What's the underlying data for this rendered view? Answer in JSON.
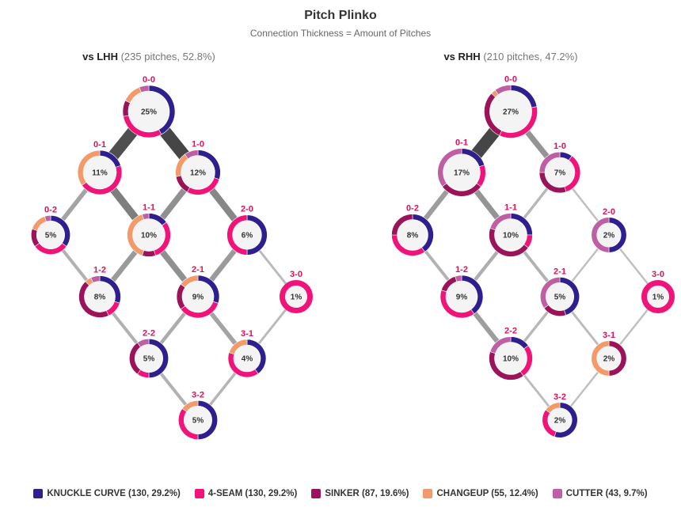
{
  "chart_data": {
    "type": "pitch-plinko",
    "title": "Pitch Plinko",
    "subtitle": "Connection Thickness = Amount of Pitches",
    "pitch_types": [
      {
        "key": "knuckle_curve",
        "label": "KNUCKLE CURVE (130, 29.2%)",
        "color": "#2e1f8f"
      },
      {
        "key": "four_seam",
        "label": "4-SEAM (130, 29.2%)",
        "color": "#f2137a"
      },
      {
        "key": "sinker",
        "label": "SINKER (87, 19.6%)",
        "color": "#9b1459"
      },
      {
        "key": "changeup",
        "label": "CHANGEUP (55, 12.4%)",
        "color": "#f29a6a"
      },
      {
        "key": "cutter",
        "label": "CUTTER (43, 9.7%)",
        "color": "#bf5fa3"
      }
    ],
    "panels": [
      {
        "name": "vs LHH",
        "detail": "(235 pitches, 52.8%)",
        "nodes": [
          {
            "count": "0-0",
            "pct": 25,
            "label": "25%",
            "mix": {
              "knuckle_curve": 0.42,
              "four_seam": 0.3,
              "changeup": 0.12,
              "sinker": 0.1,
              "cutter": 0.06
            }
          },
          {
            "count": "0-1",
            "pct": 11,
            "label": "11%",
            "mix": {
              "four_seam": 0.45,
              "changeup": 0.35,
              "knuckle_curve": 0.2
            }
          },
          {
            "count": "1-0",
            "pct": 12,
            "label": "12%",
            "mix": {
              "four_seam": 0.28,
              "knuckle_curve": 0.3,
              "changeup": 0.18,
              "sinker": 0.14,
              "cutter": 0.1
            }
          },
          {
            "count": "0-2",
            "pct": 5,
            "label": "5%",
            "mix": {
              "knuckle_curve": 0.35,
              "four_seam": 0.3,
              "sinker": 0.15,
              "changeup": 0.15,
              "cutter": 0.05
            }
          },
          {
            "count": "1-1",
            "pct": 10,
            "label": "10%",
            "mix": {
              "four_seam": 0.3,
              "changeup": 0.4,
              "knuckle_curve": 0.15,
              "sinker": 0.1,
              "cutter": 0.05
            }
          },
          {
            "count": "2-0",
            "pct": 6,
            "label": "6%",
            "mix": {
              "four_seam": 0.5,
              "knuckle_curve": 0.5
            }
          },
          {
            "count": "1-2",
            "pct": 8,
            "label": "8%",
            "mix": {
              "sinker": 0.45,
              "knuckle_curve": 0.3,
              "four_seam": 0.13,
              "changeup": 0.05,
              "cutter": 0.07
            }
          },
          {
            "count": "2-1",
            "pct": 9,
            "label": "9%",
            "mix": {
              "four_seam": 0.35,
              "knuckle_curve": 0.3,
              "changeup": 0.15,
              "sinker": 0.2
            }
          },
          {
            "count": "3-0",
            "pct": 1,
            "label": "1%",
            "mix": {
              "four_seam": 1.0
            }
          },
          {
            "count": "2-2",
            "pct": 5,
            "label": "5%",
            "mix": {
              "knuckle_curve": 0.5,
              "sinker": 0.3,
              "cutter": 0.1,
              "four_seam": 0.1
            }
          },
          {
            "count": "3-1",
            "pct": 4,
            "label": "4%",
            "mix": {
              "knuckle_curve": 0.4,
              "four_seam": 0.4,
              "changeup": 0.2
            }
          },
          {
            "count": "3-2",
            "pct": 5,
            "label": "5%",
            "mix": {
              "knuckle_curve": 0.5,
              "four_seam": 0.35,
              "changeup": 0.15
            }
          }
        ],
        "edges": [
          {
            "from": "0-0",
            "to": "0-1",
            "pitches": 26
          },
          {
            "from": "0-0",
            "to": "1-0",
            "pitches": 28
          },
          {
            "from": "0-1",
            "to": "0-2",
            "pitches": 8
          },
          {
            "from": "0-1",
            "to": "1-1",
            "pitches": 16
          },
          {
            "from": "1-0",
            "to": "1-1",
            "pitches": 12
          },
          {
            "from": "1-0",
            "to": "2-0",
            "pitches": 14
          },
          {
            "from": "0-2",
            "to": "1-2",
            "pitches": 5
          },
          {
            "from": "1-1",
            "to": "1-2",
            "pitches": 10
          },
          {
            "from": "1-1",
            "to": "2-1",
            "pitches": 12
          },
          {
            "from": "2-0",
            "to": "2-1",
            "pitches": 10
          },
          {
            "from": "2-0",
            "to": "3-0",
            "pitches": 3
          },
          {
            "from": "1-2",
            "to": "2-2",
            "pitches": 5
          },
          {
            "from": "2-1",
            "to": "2-2",
            "pitches": 6
          },
          {
            "from": "2-1",
            "to": "3-1",
            "pitches": 8
          },
          {
            "from": "3-0",
            "to": "3-1",
            "pitches": 3
          },
          {
            "from": "2-2",
            "to": "3-2",
            "pitches": 5
          },
          {
            "from": "3-1",
            "to": "3-2",
            "pitches": 4
          }
        ]
      },
      {
        "name": "vs RHH",
        "detail": "(210 pitches, 47.2%)",
        "nodes": [
          {
            "count": "0-0",
            "pct": 27,
            "label": "27%",
            "mix": {
              "sinker": 0.3,
              "four_seam": 0.35,
              "knuckle_curve": 0.22,
              "cutter": 0.1,
              "changeup": 0.03
            }
          },
          {
            "count": "0-1",
            "pct": 17,
            "label": "17%",
            "mix": {
              "sinker": 0.3,
              "knuckle_curve": 0.2,
              "cutter": 0.35,
              "four_seam": 0.15
            }
          },
          {
            "count": "1-0",
            "pct": 7,
            "label": "7%",
            "mix": {
              "four_seam": 0.35,
              "sinker": 0.3,
              "cutter": 0.25,
              "knuckle_curve": 0.1
            }
          },
          {
            "count": "0-2",
            "pct": 8,
            "label": "8%",
            "mix": {
              "knuckle_curve": 0.4,
              "four_seam": 0.35,
              "sinker": 0.25
            }
          },
          {
            "count": "1-1",
            "pct": 10,
            "label": "10%",
            "mix": {
              "sinker": 0.45,
              "four_seam": 0.1,
              "cutter": 0.2,
              "knuckle_curve": 0.25
            }
          },
          {
            "count": "2-0",
            "pct": 2,
            "label": "2%",
            "mix": {
              "knuckle_curve": 0.5,
              "cutter": 0.5
            }
          },
          {
            "count": "1-2",
            "pct": 9,
            "label": "9%",
            "mix": {
              "knuckle_curve": 0.4,
              "four_seam": 0.4,
              "sinker": 0.15,
              "cutter": 0.05
            }
          },
          {
            "count": "2-1",
            "pct": 5,
            "label": "5%",
            "mix": {
              "knuckle_curve": 0.45,
              "cutter": 0.35,
              "sinker": 0.2
            }
          },
          {
            "count": "3-0",
            "pct": 1,
            "label": "1%",
            "mix": {
              "four_seam": 1.0
            }
          },
          {
            "count": "2-2",
            "pct": 10,
            "label": "10%",
            "mix": {
              "sinker": 0.4,
              "four_seam": 0.25,
              "knuckle_curve": 0.15,
              "cutter": 0.2
            }
          },
          {
            "count": "3-1",
            "pct": 2,
            "label": "2%",
            "mix": {
              "sinker": 0.5,
              "changeup": 0.5
            }
          },
          {
            "count": "3-2",
            "pct": 2,
            "label": "2%",
            "mix": {
              "knuckle_curve": 0.55,
              "four_seam": 0.3,
              "changeup": 0.15
            }
          }
        ],
        "edges": [
          {
            "from": "0-0",
            "to": "0-1",
            "pitches": 30
          },
          {
            "from": "0-0",
            "to": "1-0",
            "pitches": 12
          },
          {
            "from": "0-1",
            "to": "0-2",
            "pitches": 10
          },
          {
            "from": "0-1",
            "to": "1-1",
            "pitches": 12
          },
          {
            "from": "1-0",
            "to": "1-1",
            "pitches": 4
          },
          {
            "from": "1-0",
            "to": "2-0",
            "pitches": 2
          },
          {
            "from": "0-2",
            "to": "1-2",
            "pitches": 5
          },
          {
            "from": "1-1",
            "to": "1-2",
            "pitches": 6
          },
          {
            "from": "1-1",
            "to": "2-1",
            "pitches": 5
          },
          {
            "from": "2-0",
            "to": "2-1",
            "pitches": 2
          },
          {
            "from": "2-0",
            "to": "3-0",
            "pitches": 2
          },
          {
            "from": "1-2",
            "to": "2-2",
            "pitches": 10
          },
          {
            "from": "2-1",
            "to": "2-2",
            "pitches": 4
          },
          {
            "from": "2-1",
            "to": "3-1",
            "pitches": 3
          },
          {
            "from": "3-0",
            "to": "3-1",
            "pitches": 2
          },
          {
            "from": "2-2",
            "to": "3-2",
            "pitches": 3
          },
          {
            "from": "3-1",
            "to": "3-2",
            "pitches": 2
          }
        ]
      }
    ]
  }
}
